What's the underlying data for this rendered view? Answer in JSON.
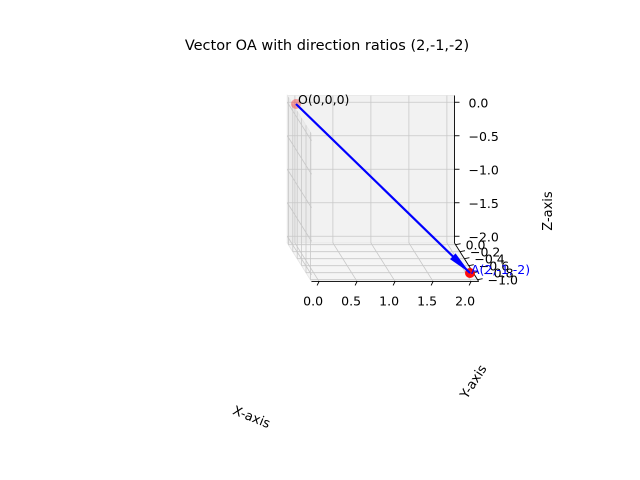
{
  "chart_data": {
    "type": "line",
    "projection": "3d",
    "title": "Vector OA with direction ratios (2,-1,-2)",
    "xlabel": "X-axis",
    "ylabel": "Y-axis",
    "zlabel": "Z-axis",
    "xlim": [
      0,
      2
    ],
    "ylim": [
      -1,
      0
    ],
    "zlim": [
      -2,
      0
    ],
    "xticks": [
      "0.0",
      "0.5",
      "1.0",
      "1.5",
      "2.0"
    ],
    "yticks": [
      "0.0",
      "−0.2",
      "−0.4",
      "−0.6",
      "−0.8",
      "−1.0"
    ],
    "zticks": [
      "0.0",
      "−0.5",
      "−1.0",
      "−1.5",
      "−2.0"
    ],
    "grid": true,
    "series": [
      {
        "kind": "arrow",
        "from": [
          0,
          0,
          0
        ],
        "to": [
          2,
          -1,
          -2
        ],
        "color": "#0000ff"
      }
    ],
    "points": [
      {
        "label": "O(0,0,0)",
        "coords": [
          0,
          0,
          0
        ],
        "color": "#ff0000",
        "label_color": "#000000"
      },
      {
        "label": "A(2,-1,-2)",
        "coords": [
          2,
          -1,
          -2
        ],
        "color": "#ff0000",
        "label_color": "#0000ff"
      }
    ]
  }
}
